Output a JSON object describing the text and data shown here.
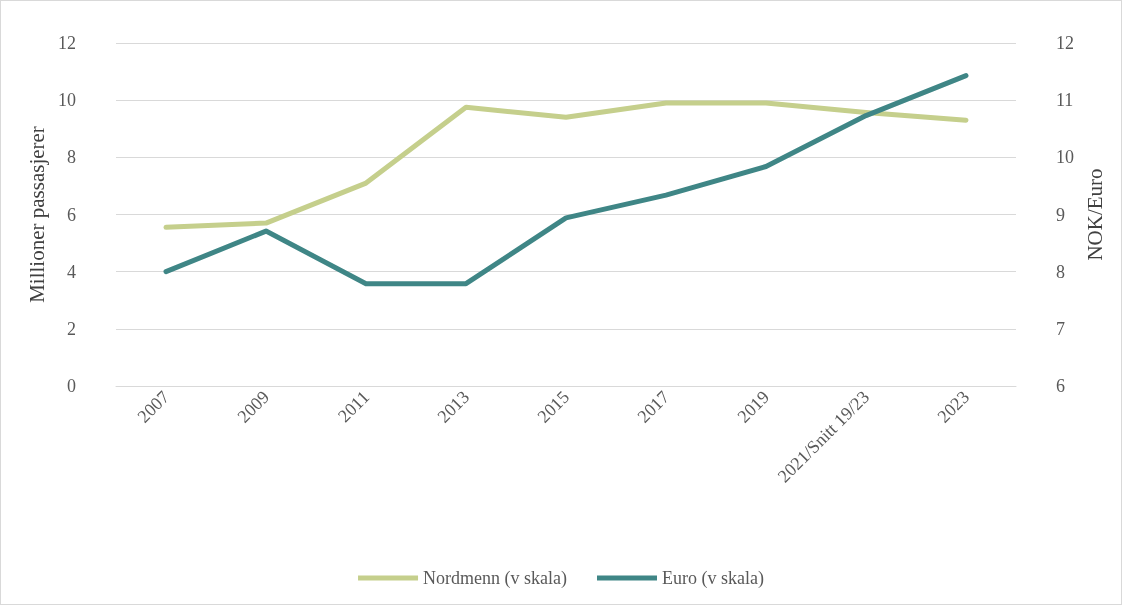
{
  "chart_data": {
    "type": "line",
    "ylabel": "Millioner passasjerer",
    "y2label": "NOK/Euro",
    "categories": [
      "2007",
      "2009",
      "2011",
      "2013",
      "2015",
      "2017",
      "2019",
      "2021/Snitt 19/23",
      "2023"
    ],
    "series": [
      {
        "name": "Nordmenn (v skala)",
        "color": "#c5cf8c",
        "values": [
          5.55,
          5.7,
          7.1,
          9.75,
          9.4,
          9.9,
          9.9,
          9.57,
          9.3
        ]
      },
      {
        "name": "Euro (v skala)",
        "color": "#3f8686",
        "axis": "y2",
        "values": [
          8.0,
          8.71,
          7.79,
          7.79,
          8.94,
          9.34,
          9.84,
          10.73,
          11.43
        ]
      }
    ],
    "ylim": [
      0,
      12
    ],
    "yticks": [
      0,
      2,
      4,
      6,
      8,
      10,
      12
    ],
    "y2lim": [
      6,
      12
    ],
    "y2ticks": [
      6,
      7,
      8,
      9,
      10,
      11,
      12
    ],
    "grid": "y",
    "legend": "bottom",
    "marker": "none",
    "line_style": "solid"
  }
}
